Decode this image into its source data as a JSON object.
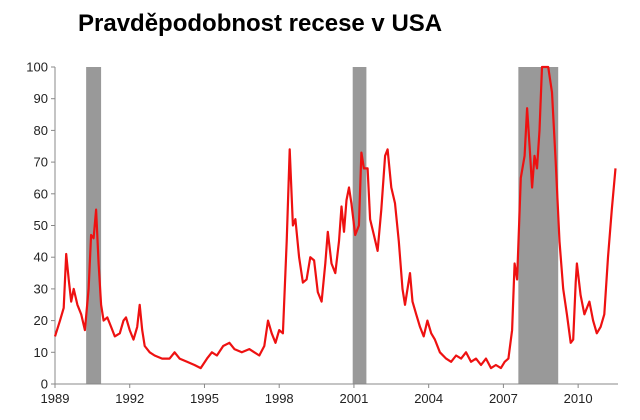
{
  "chart_data": {
    "type": "line",
    "title": "Pravděpodobnost recese v USA",
    "xlabel": "",
    "ylabel": "",
    "xlim": [
      1989.0,
      2011.6
    ],
    "ylim": [
      0,
      100
    ],
    "grid": false,
    "legend": "none",
    "x_ticks": [
      {
        "value": 1989,
        "label": "1989"
      },
      {
        "value": 1992,
        "label": "1992"
      },
      {
        "value": 1995,
        "label": "1995"
      },
      {
        "value": 1998,
        "label": "1998"
      },
      {
        "value": 2001,
        "label": "2001"
      },
      {
        "value": 2004,
        "label": "2004"
      },
      {
        "value": 2007,
        "label": "2007"
      },
      {
        "value": 2010,
        "label": "2010"
      }
    ],
    "y_ticks": [
      {
        "value": 0,
        "label": "0"
      },
      {
        "value": 10,
        "label": "10"
      },
      {
        "value": 20,
        "label": "20"
      },
      {
        "value": 30,
        "label": "30"
      },
      {
        "value": 40,
        "label": "40"
      },
      {
        "value": 50,
        "label": "50"
      },
      {
        "value": 60,
        "label": "60"
      },
      {
        "value": 70,
        "label": "70"
      },
      {
        "value": 80,
        "label": "80"
      },
      {
        "value": 90,
        "label": "90"
      },
      {
        "value": 100,
        "label": "100"
      }
    ],
    "shaded_periods": [
      {
        "start": 1990.25,
        "end": 1990.85
      },
      {
        "start": 2000.95,
        "end": 2001.5
      },
      {
        "start": 2007.6,
        "end": 2009.2
      }
    ],
    "series": [
      {
        "color": "#ee1111",
        "points": [
          [
            1989.0,
            15
          ],
          [
            1989.2,
            20
          ],
          [
            1989.35,
            24
          ],
          [
            1989.45,
            41
          ],
          [
            1989.55,
            33
          ],
          [
            1989.65,
            26
          ],
          [
            1989.75,
            30
          ],
          [
            1989.9,
            25
          ],
          [
            1990.05,
            22
          ],
          [
            1990.2,
            17
          ],
          [
            1990.35,
            30
          ],
          [
            1990.45,
            47
          ],
          [
            1990.55,
            46
          ],
          [
            1990.65,
            55
          ],
          [
            1990.75,
            38
          ],
          [
            1990.85,
            25
          ],
          [
            1990.95,
            20
          ],
          [
            1991.1,
            21
          ],
          [
            1991.25,
            18
          ],
          [
            1991.4,
            15
          ],
          [
            1991.6,
            16
          ],
          [
            1991.75,
            20
          ],
          [
            1991.85,
            21
          ],
          [
            1992.0,
            17
          ],
          [
            1992.15,
            14
          ],
          [
            1992.3,
            18
          ],
          [
            1992.4,
            25
          ],
          [
            1992.5,
            17
          ],
          [
            1992.6,
            12
          ],
          [
            1992.8,
            10
          ],
          [
            1993.0,
            9
          ],
          [
            1993.3,
            8
          ],
          [
            1993.6,
            8
          ],
          [
            1993.8,
            10
          ],
          [
            1994.0,
            8
          ],
          [
            1994.3,
            7
          ],
          [
            1994.6,
            6
          ],
          [
            1994.85,
            5
          ],
          [
            1995.1,
            8
          ],
          [
            1995.3,
            10
          ],
          [
            1995.5,
            9
          ],
          [
            1995.75,
            12
          ],
          [
            1996.0,
            13
          ],
          [
            1996.2,
            11
          ],
          [
            1996.5,
            10
          ],
          [
            1996.8,
            11
          ],
          [
            1997.0,
            10
          ],
          [
            1997.2,
            9
          ],
          [
            1997.4,
            12
          ],
          [
            1997.55,
            20
          ],
          [
            1997.7,
            16
          ],
          [
            1997.85,
            13
          ],
          [
            1998.0,
            17
          ],
          [
            1998.15,
            16
          ],
          [
            1998.3,
            45
          ],
          [
            1998.42,
            74
          ],
          [
            1998.55,
            50
          ],
          [
            1998.65,
            52
          ],
          [
            1998.8,
            40
          ],
          [
            1998.95,
            32
          ],
          [
            1999.1,
            33
          ],
          [
            1999.25,
            40
          ],
          [
            1999.4,
            39
          ],
          [
            1999.55,
            29
          ],
          [
            1999.7,
            26
          ],
          [
            1999.85,
            38
          ],
          [
            1999.95,
            48
          ],
          [
            2000.1,
            38
          ],
          [
            2000.25,
            35
          ],
          [
            2000.4,
            45
          ],
          [
            2000.5,
            56
          ],
          [
            2000.6,
            48
          ],
          [
            2000.7,
            58
          ],
          [
            2000.8,
            62
          ],
          [
            2000.9,
            57
          ],
          [
            2001.05,
            47
          ],
          [
            2001.2,
            50
          ],
          [
            2001.3,
            73
          ],
          [
            2001.4,
            68
          ],
          [
            2001.55,
            68
          ],
          [
            2001.65,
            52
          ],
          [
            2001.8,
            47
          ],
          [
            2001.95,
            42
          ],
          [
            2002.1,
            55
          ],
          [
            2002.25,
            72
          ],
          [
            2002.35,
            74
          ],
          [
            2002.5,
            62
          ],
          [
            2002.65,
            57
          ],
          [
            2002.8,
            45
          ],
          [
            2002.95,
            30
          ],
          [
            2003.05,
            25
          ],
          [
            2003.15,
            30
          ],
          [
            2003.25,
            35
          ],
          [
            2003.35,
            26
          ],
          [
            2003.5,
            22
          ],
          [
            2003.65,
            18
          ],
          [
            2003.8,
            15
          ],
          [
            2003.95,
            20
          ],
          [
            2004.1,
            16
          ],
          [
            2004.25,
            14
          ],
          [
            2004.45,
            10
          ],
          [
            2004.7,
            8
          ],
          [
            2004.9,
            7
          ],
          [
            2005.1,
            9
          ],
          [
            2005.3,
            8
          ],
          [
            2005.5,
            10
          ],
          [
            2005.7,
            7
          ],
          [
            2005.9,
            8
          ],
          [
            2006.1,
            6
          ],
          [
            2006.3,
            8
          ],
          [
            2006.5,
            5
          ],
          [
            2006.7,
            6
          ],
          [
            2006.9,
            5
          ],
          [
            2007.05,
            7
          ],
          [
            2007.2,
            8
          ],
          [
            2007.35,
            17
          ],
          [
            2007.45,
            38
          ],
          [
            2007.55,
            33
          ],
          [
            2007.7,
            65
          ],
          [
            2007.85,
            72
          ],
          [
            2007.95,
            87
          ],
          [
            2008.05,
            75
          ],
          [
            2008.15,
            62
          ],
          [
            2008.25,
            72
          ],
          [
            2008.35,
            68
          ],
          [
            2008.45,
            80
          ],
          [
            2008.55,
            100
          ],
          [
            2008.65,
            100
          ],
          [
            2008.8,
            100
          ],
          [
            2008.95,
            92
          ],
          [
            2009.1,
            70
          ],
          [
            2009.25,
            45
          ],
          [
            2009.4,
            30
          ],
          [
            2009.55,
            22
          ],
          [
            2009.7,
            13
          ],
          [
            2009.8,
            14
          ],
          [
            2009.9,
            32
          ],
          [
            2009.95,
            38
          ],
          [
            2010.1,
            28
          ],
          [
            2010.25,
            22
          ],
          [
            2010.45,
            26
          ],
          [
            2010.6,
            20
          ],
          [
            2010.75,
            16
          ],
          [
            2010.9,
            18
          ],
          [
            2011.05,
            22
          ],
          [
            2011.2,
            40
          ],
          [
            2011.35,
            55
          ],
          [
            2011.5,
            68
          ]
        ]
      }
    ]
  }
}
